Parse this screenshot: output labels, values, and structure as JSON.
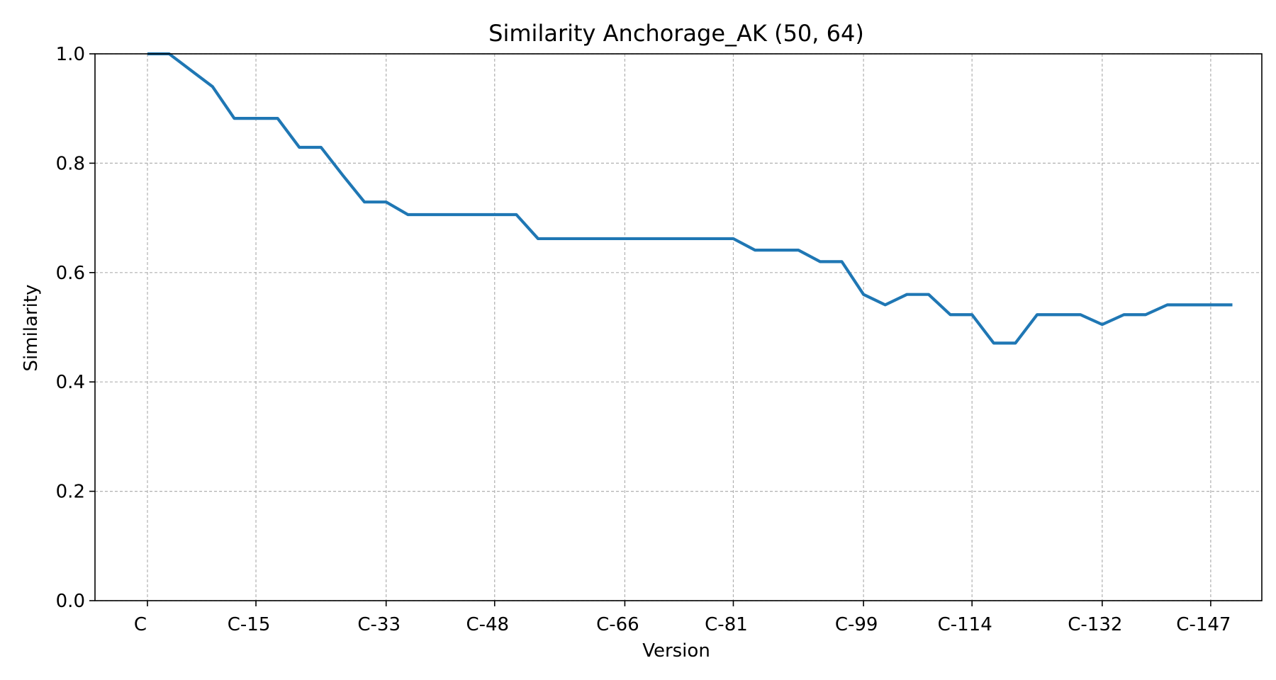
{
  "chart_data": {
    "type": "line",
    "title": "Similarity Anchorage_AK (50, 64)",
    "xlabel": "Version",
    "ylabel": "Similarity",
    "ylim": [
      0,
      1.0
    ],
    "y_ticks": [
      "0.0",
      "0.2",
      "0.4",
      "0.6",
      "0.8",
      "1.0"
    ],
    "x_tick_labels": [
      "C",
      "C-15",
      "C-33",
      "C-48",
      "C-66",
      "C-81",
      "C-99",
      "C-114",
      "C-132",
      "C-147"
    ],
    "grid": true,
    "legend": "none",
    "series": [
      {
        "color": "#1f77b4",
        "values": [
          1.0,
          1.0,
          0.97,
          0.94,
          0.882,
          0.882,
          0.882,
          0.829,
          0.829,
          0.778,
          0.729,
          0.729,
          0.706,
          0.706,
          0.706,
          0.706,
          0.706,
          0.706,
          0.662,
          0.662,
          0.662,
          0.662,
          0.662,
          0.662,
          0.662,
          0.662,
          0.662,
          0.662,
          0.641,
          0.641,
          0.641,
          0.62,
          0.62,
          0.56,
          0.541,
          0.56,
          0.56,
          0.523,
          0.523,
          0.471,
          0.471,
          0.523,
          0.523,
          0.523,
          0.505,
          0.523,
          0.523,
          0.541,
          0.541,
          0.541,
          0.541
        ]
      }
    ],
    "x_tick_indices": [
      0,
      5,
      11,
      16,
      22,
      27,
      33,
      38,
      44,
      49
    ]
  },
  "colors": {
    "line": "#1f77b4",
    "grid": "#b0b0b0",
    "axis": "#000000"
  }
}
